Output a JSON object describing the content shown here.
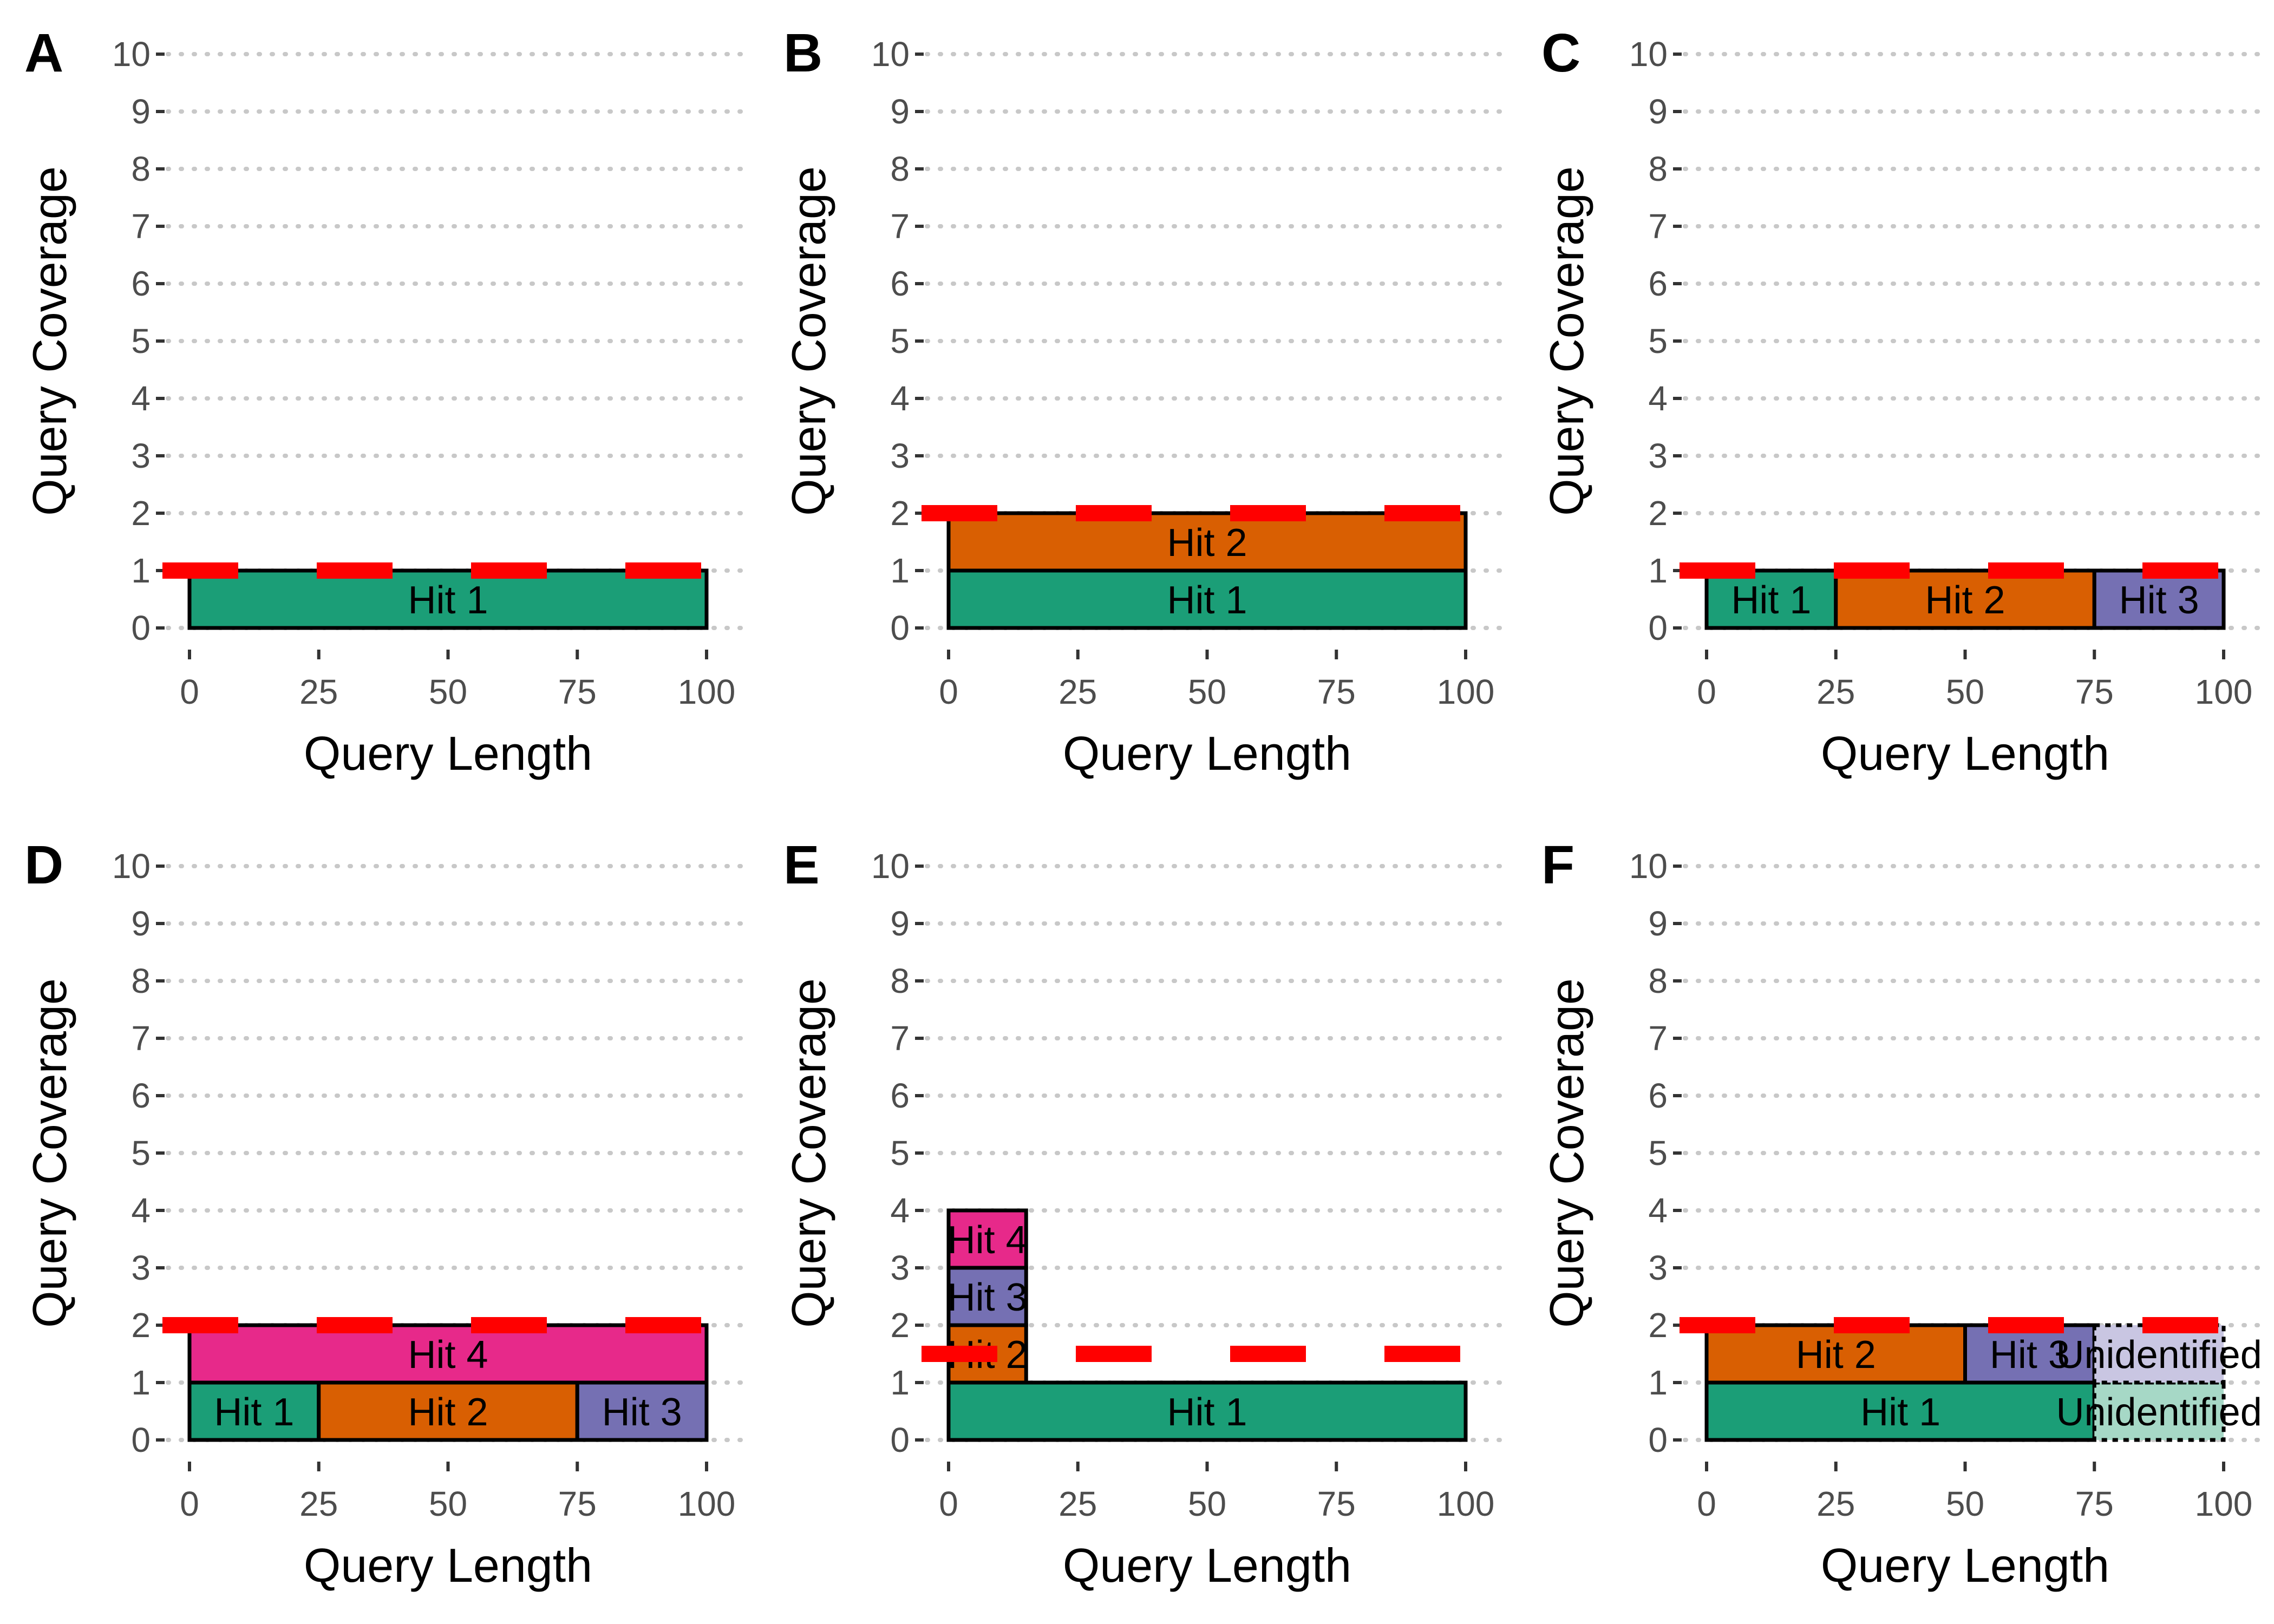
{
  "chart_data": [
    {
      "type": "bar",
      "panel": "A",
      "xlabel": "Query Length",
      "ylabel": "Query Coverage",
      "xlim": [
        0,
        100
      ],
      "ylim": [
        0,
        10
      ],
      "xticks": [
        "0",
        "25",
        "50",
        "75",
        "100"
      ],
      "yticks": [
        "0",
        "1",
        "2",
        "3",
        "4",
        "5",
        "6",
        "7",
        "8",
        "9",
        "10"
      ],
      "threshold": 1,
      "hits": [
        {
          "label": "Hit 1",
          "x0": 0,
          "x1": 100,
          "y0": 0,
          "y1": 1,
          "color": "#1b9e77",
          "dashed": false
        }
      ]
    },
    {
      "type": "bar",
      "panel": "B",
      "xlabel": "Query Length",
      "ylabel": "Query Coverage",
      "xlim": [
        0,
        100
      ],
      "ylim": [
        0,
        10
      ],
      "xticks": [
        "0",
        "25",
        "50",
        "75",
        "100"
      ],
      "yticks": [
        "0",
        "1",
        "2",
        "3",
        "4",
        "5",
        "6",
        "7",
        "8",
        "9",
        "10"
      ],
      "threshold": 2,
      "hits": [
        {
          "label": "Hit 1",
          "x0": 0,
          "x1": 100,
          "y0": 0,
          "y1": 1,
          "color": "#1b9e77",
          "dashed": false
        },
        {
          "label": "Hit 2",
          "x0": 0,
          "x1": 100,
          "y0": 1,
          "y1": 2,
          "color": "#d95f02",
          "dashed": false
        }
      ]
    },
    {
      "type": "bar",
      "panel": "C",
      "xlabel": "Query Length",
      "ylabel": "Query Coverage",
      "xlim": [
        0,
        100
      ],
      "ylim": [
        0,
        10
      ],
      "xticks": [
        "0",
        "25",
        "50",
        "75",
        "100"
      ],
      "yticks": [
        "0",
        "1",
        "2",
        "3",
        "4",
        "5",
        "6",
        "7",
        "8",
        "9",
        "10"
      ],
      "threshold": 1,
      "hits": [
        {
          "label": "Hit 1",
          "x0": 0,
          "x1": 25,
          "y0": 0,
          "y1": 1,
          "color": "#1b9e77",
          "dashed": false
        },
        {
          "label": "Hit 2",
          "x0": 25,
          "x1": 75,
          "y0": 0,
          "y1": 1,
          "color": "#d95f02",
          "dashed": false
        },
        {
          "label": "Hit 3",
          "x0": 75,
          "x1": 100,
          "y0": 0,
          "y1": 1,
          "color": "#7570b3",
          "dashed": false
        }
      ]
    },
    {
      "type": "bar",
      "panel": "D",
      "xlabel": "Query Length",
      "ylabel": "Query Coverage",
      "xlim": [
        0,
        100
      ],
      "ylim": [
        0,
        10
      ],
      "xticks": [
        "0",
        "25",
        "50",
        "75",
        "100"
      ],
      "yticks": [
        "0",
        "1",
        "2",
        "3",
        "4",
        "5",
        "6",
        "7",
        "8",
        "9",
        "10"
      ],
      "threshold": 2,
      "hits": [
        {
          "label": "Hit 1",
          "x0": 0,
          "x1": 25,
          "y0": 0,
          "y1": 1,
          "color": "#1b9e77",
          "dashed": false
        },
        {
          "label": "Hit 2",
          "x0": 25,
          "x1": 75,
          "y0": 0,
          "y1": 1,
          "color": "#d95f02",
          "dashed": false
        },
        {
          "label": "Hit 3",
          "x0": 75,
          "x1": 100,
          "y0": 0,
          "y1": 1,
          "color": "#7570b3",
          "dashed": false
        },
        {
          "label": "Hit 4",
          "x0": 0,
          "x1": 100,
          "y0": 1,
          "y1": 2,
          "color": "#e7298a",
          "dashed": false
        }
      ]
    },
    {
      "type": "bar",
      "panel": "E",
      "xlabel": "Query Length",
      "ylabel": "Query Coverage",
      "xlim": [
        0,
        100
      ],
      "ylim": [
        0,
        10
      ],
      "xticks": [
        "0",
        "25",
        "50",
        "75",
        "100"
      ],
      "yticks": [
        "0",
        "1",
        "2",
        "3",
        "4",
        "5",
        "6",
        "7",
        "8",
        "9",
        "10"
      ],
      "threshold": 1.5,
      "hits": [
        {
          "label": "Hit 1",
          "x0": 0,
          "x1": 100,
          "y0": 0,
          "y1": 1,
          "color": "#1b9e77",
          "dashed": false
        },
        {
          "label": "Hit 2",
          "x0": 0,
          "x1": 15,
          "y0": 1,
          "y1": 2,
          "color": "#d95f02",
          "dashed": false
        },
        {
          "label": "Hit 3",
          "x0": 0,
          "x1": 15,
          "y0": 2,
          "y1": 3,
          "color": "#7570b3",
          "dashed": false
        },
        {
          "label": "Hit 4",
          "x0": 0,
          "x1": 15,
          "y0": 3,
          "y1": 4,
          "color": "#e7298a",
          "dashed": false
        }
      ]
    },
    {
      "type": "bar",
      "panel": "F",
      "xlabel": "Query Length",
      "ylabel": "Query Coverage",
      "xlim": [
        0,
        100
      ],
      "ylim": [
        0,
        10
      ],
      "xticks": [
        "0",
        "25",
        "50",
        "75",
        "100"
      ],
      "yticks": [
        "0",
        "1",
        "2",
        "3",
        "4",
        "5",
        "6",
        "7",
        "8",
        "9",
        "10"
      ],
      "threshold": 2,
      "hits": [
        {
          "label": "Hit 1",
          "x0": 0,
          "x1": 75,
          "y0": 0,
          "y1": 1,
          "color": "#1b9e77",
          "dashed": false
        },
        {
          "label": "Hit 2",
          "x0": 0,
          "x1": 50,
          "y0": 1,
          "y1": 2,
          "color": "#d95f02",
          "dashed": false
        },
        {
          "label": "Hit 3",
          "x0": 50,
          "x1": 75,
          "y0": 1,
          "y1": 2,
          "color": "#7570b3",
          "dashed": false
        },
        {
          "label": "Unidentified",
          "x0": 75,
          "x1": 100,
          "y0": 0,
          "y1": 1,
          "color": "#a6d8c6",
          "dashed": true
        },
        {
          "label": "Unidentified",
          "x0": 75,
          "x1": 100,
          "y0": 1,
          "y1": 2,
          "color": "#c9c6e2",
          "dashed": true
        }
      ]
    }
  ]
}
